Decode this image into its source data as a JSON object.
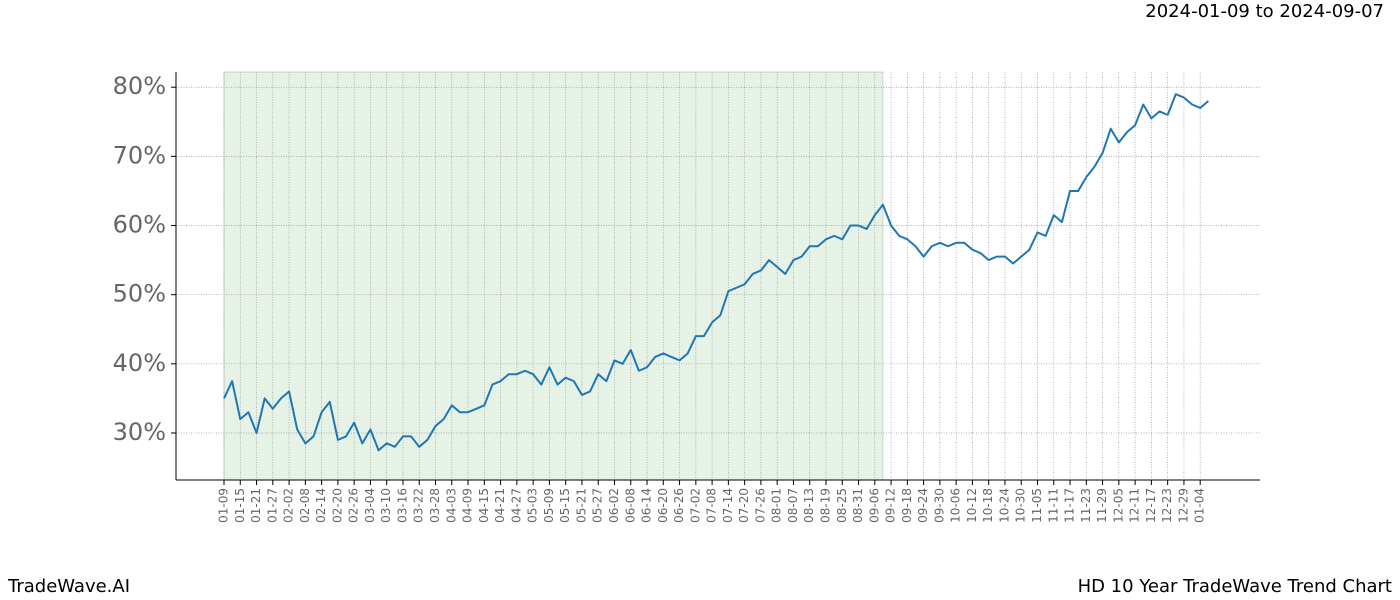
{
  "chart_data": {
    "type": "line",
    "date_range": "2024-01-09 to 2024-09-07",
    "brand": "TradeWave.AI",
    "footer_title": "HD 10 Year TradeWave Trend Chart",
    "categories": [
      "01-09",
      null,
      "01-15",
      null,
      "01-21",
      null,
      "01-27",
      null,
      "02-02",
      null,
      "02-08",
      null,
      "02-14",
      null,
      "02-20",
      null,
      "02-26",
      null,
      "03-04",
      null,
      "03-10",
      null,
      "03-16",
      null,
      "03-22",
      null,
      "03-28",
      null,
      "04-03",
      null,
      "04-09",
      null,
      "04-15",
      null,
      "04-21",
      null,
      "04-27",
      null,
      "05-03",
      null,
      "05-09",
      null,
      "05-15",
      null,
      "05-21",
      null,
      "05-27",
      null,
      "06-02",
      null,
      "06-08",
      null,
      "06-14",
      null,
      "06-20",
      null,
      "06-26",
      null,
      "07-02",
      null,
      "07-08",
      null,
      "07-14",
      null,
      "07-20",
      null,
      "07-26",
      null,
      "08-01",
      null,
      "08-07",
      null,
      "08-13",
      null,
      "08-19",
      null,
      "08-25",
      null,
      "08-31",
      null,
      "09-06",
      null,
      "09-12",
      null,
      "09-18",
      null,
      "09-24",
      null,
      "09-30",
      null,
      "10-06",
      null,
      "10-12",
      null,
      "10-18",
      null,
      "10-24",
      null,
      "10-30",
      null,
      "11-05",
      null,
      "11-11",
      null,
      "11-17",
      null,
      "11-23",
      null,
      "11-29",
      null,
      "12-05",
      null,
      "12-11",
      null,
      "12-17",
      null,
      "12-23",
      null,
      "12-29",
      null,
      "01-04",
      null
    ],
    "series": [
      {
        "color": "#1f77b4",
        "values": [
          35,
          37.5,
          32,
          33,
          30,
          35,
          33.5,
          35,
          36,
          30.5,
          28.5,
          29.5,
          33,
          34.5,
          29,
          29.5,
          31.5,
          28.5,
          30.5,
          27.5,
          28.5,
          28,
          29.5,
          29.5,
          28,
          29,
          31,
          32,
          34,
          33,
          33,
          33.5,
          34,
          37,
          37.5,
          38.5,
          38.5,
          39,
          38.5,
          37,
          39.5,
          37,
          38,
          37.5,
          35.5,
          36,
          38.5,
          37.5,
          40.5,
          40,
          42,
          39,
          39.5,
          41,
          41.5,
          41,
          40.5,
          41.5,
          44,
          44,
          46,
          47,
          50.5,
          51,
          51.5,
          53,
          53.5,
          55,
          54,
          53,
          55,
          55.5,
          57,
          57,
          58,
          58.5,
          58,
          60,
          60,
          59.5,
          61.5,
          63,
          60,
          58.5,
          58,
          57,
          55.5,
          57,
          57.5,
          57,
          57.5,
          57.5,
          56.5,
          56,
          55,
          55.5,
          55.5,
          54.5,
          55.5,
          56.5,
          59,
          58.5,
          61.5,
          60.5,
          65,
          65,
          67,
          68.5,
          70.5,
          74,
          72,
          73.5,
          74.5,
          77.5,
          75.5,
          76.5,
          76,
          79,
          78.5,
          77.5,
          77,
          78
        ]
      }
    ],
    "shaded_range": [
      0,
      81
    ],
    "shade_color": "#e6f2e6",
    "ylim": [
      23.2,
      82.2
    ],
    "yticks": [
      {
        "value": 30,
        "label": "30%"
      },
      {
        "value": 40,
        "label": "40%"
      },
      {
        "value": 50,
        "label": "50%"
      },
      {
        "value": 60,
        "label": "60%"
      },
      {
        "value": 70,
        "label": "70%"
      },
      {
        "value": 80,
        "label": "80%"
      }
    ],
    "grid": true
  }
}
